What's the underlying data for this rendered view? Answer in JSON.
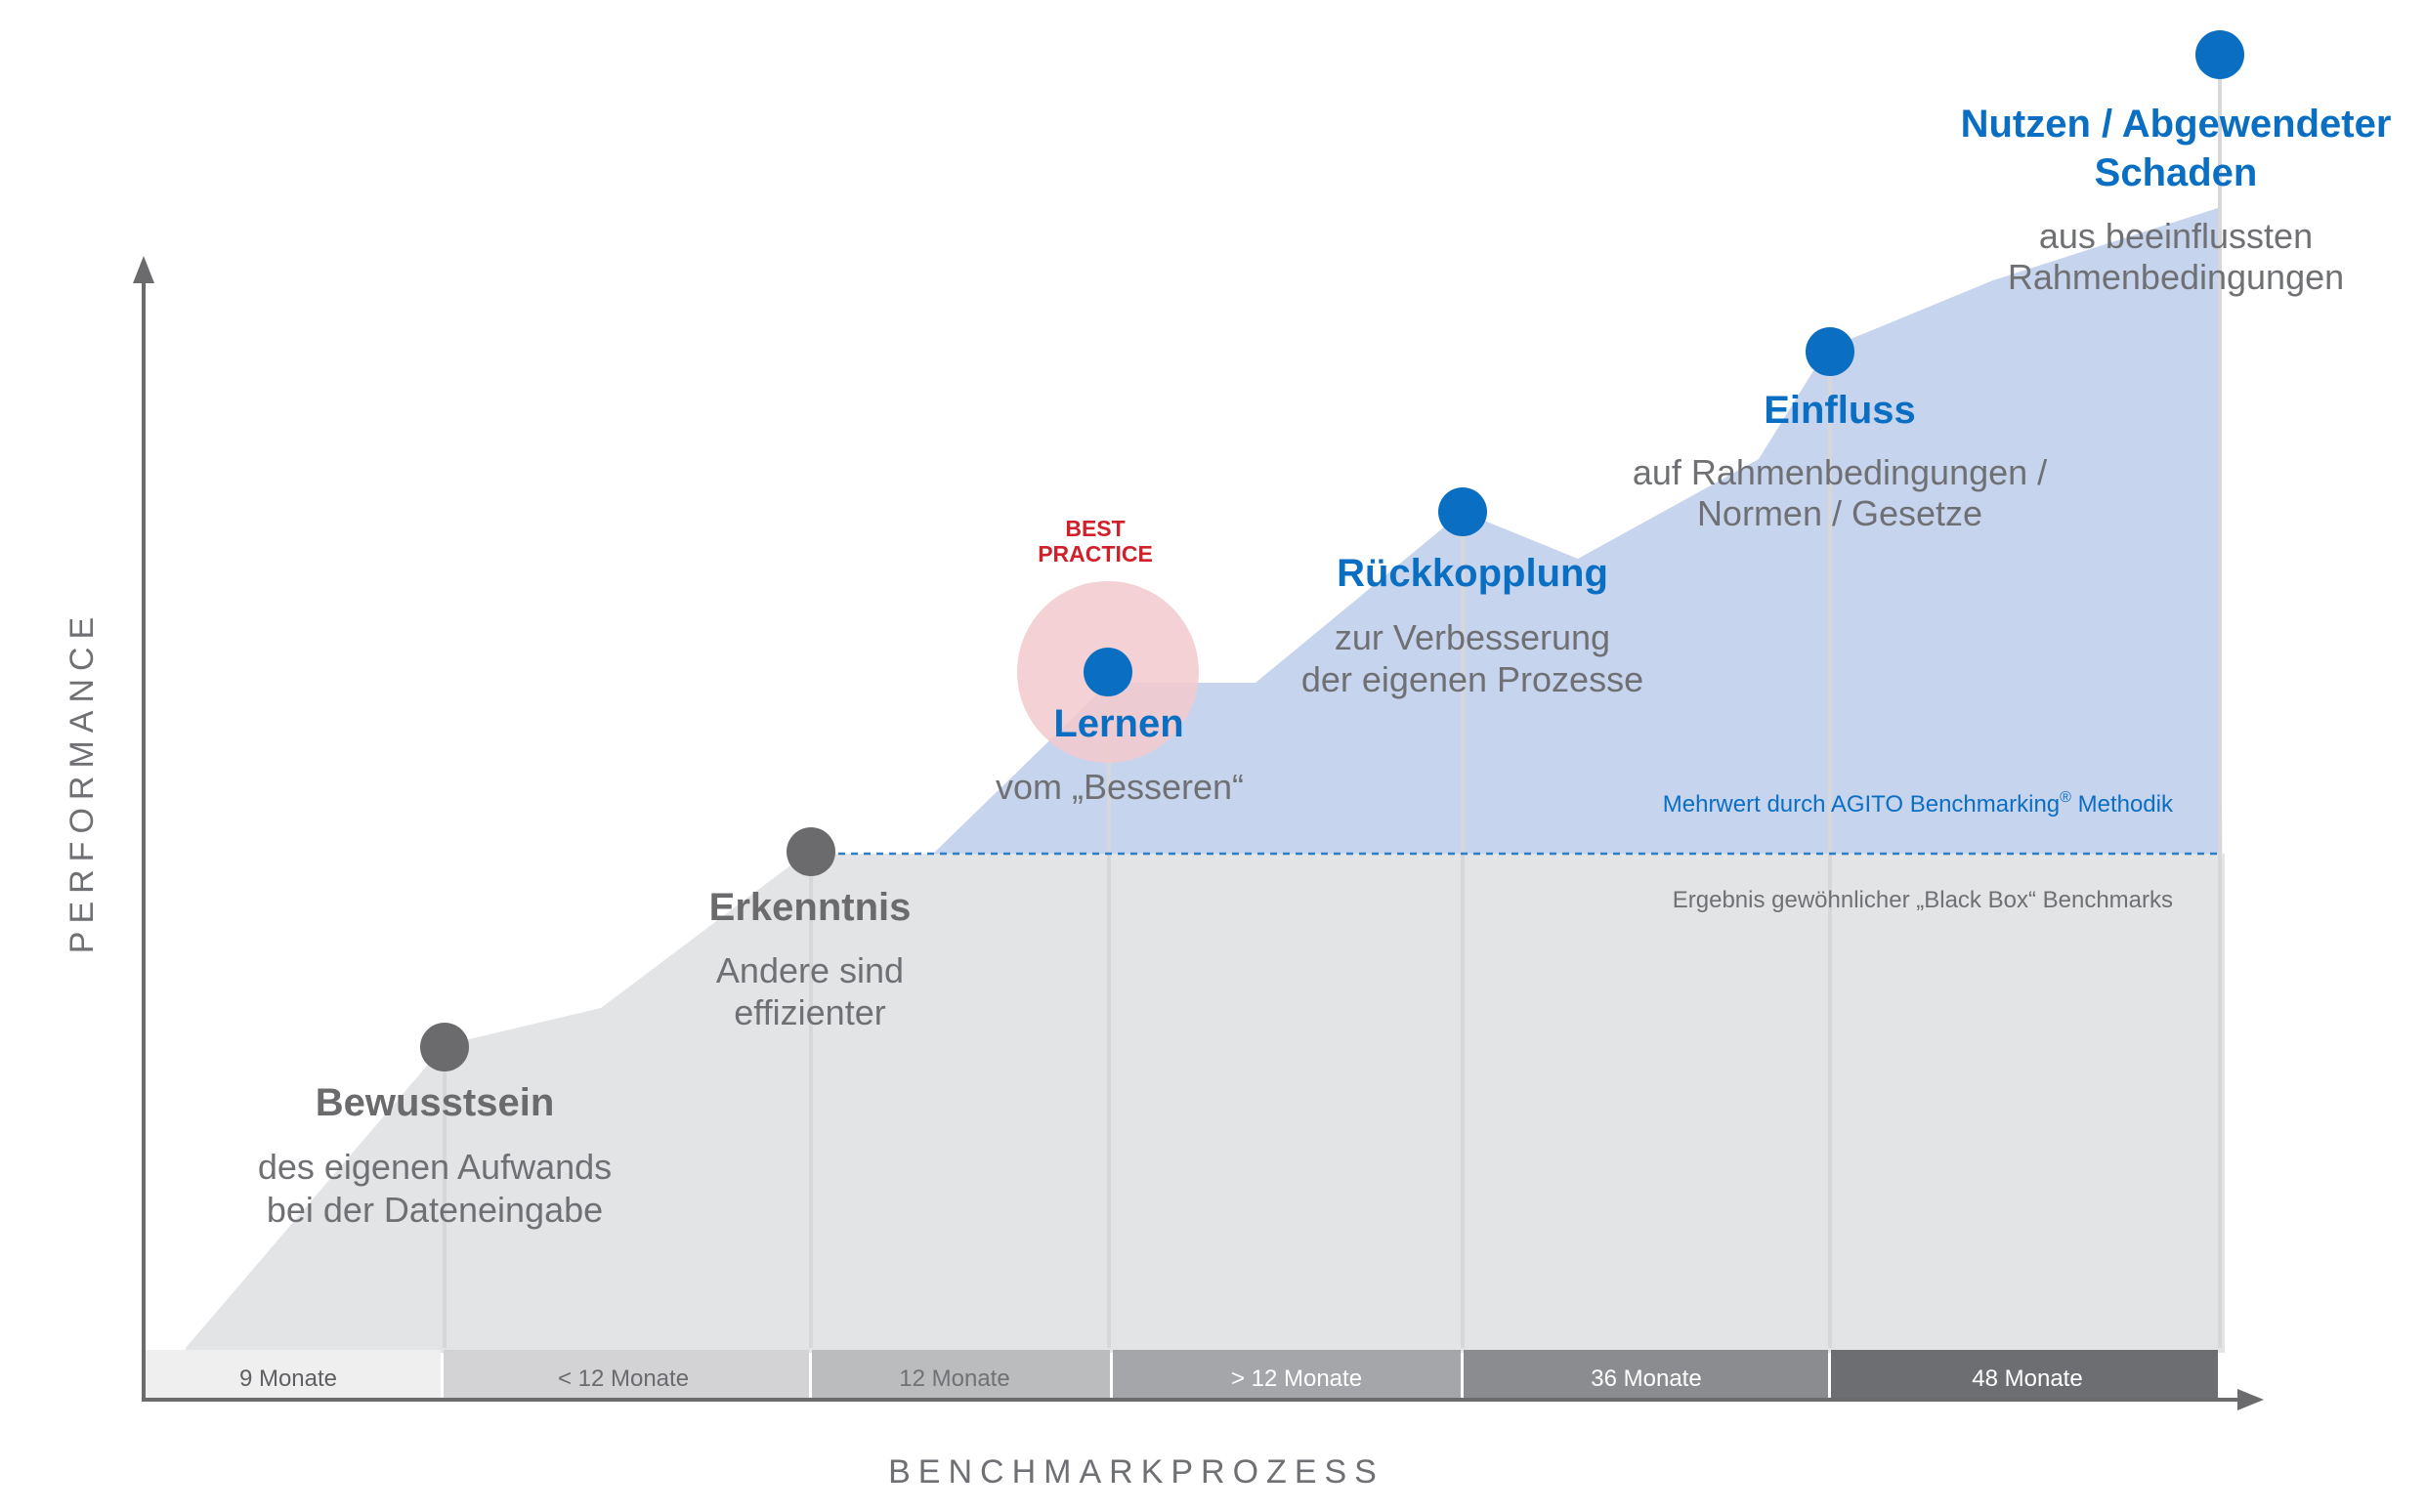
{
  "axes": {
    "y_label": "PERFORMANCE",
    "x_label": "BENCHMARKPROZESS"
  },
  "timeline": [
    {
      "label": "9 Monate"
    },
    {
      "label": "< 12 Monate"
    },
    {
      "label": "12 Monate"
    },
    {
      "label": "> 12 Monate"
    },
    {
      "label": "36 Monate"
    },
    {
      "label": "48 Monate"
    }
  ],
  "stages": [
    {
      "title": "Bewusstsein",
      "lines": [
        "des eigenen Aufwands",
        "bei der Dateneingabe"
      ],
      "style": "gray"
    },
    {
      "title": "Erkenntnis",
      "lines": [
        "Andere sind",
        "effizienter"
      ],
      "style": "gray"
    },
    {
      "title": "Lernen",
      "lines": [
        "vom „Besseren“"
      ],
      "style": "blue"
    },
    {
      "title": "Rückkopplung",
      "lines": [
        "zur Verbesserung",
        "der eigenen Prozesse"
      ],
      "style": "blue"
    },
    {
      "title": "Einfluss",
      "lines": [
        "auf Rahmenbedingungen /",
        "Normen / Gesetze"
      ],
      "style": "blue"
    },
    {
      "title_lines": [
        "Nutzen / Abgewendeter",
        "Schaden"
      ],
      "lines": [
        "aus beeinflussten",
        "Rahmenbedingungen"
      ],
      "style": "blue"
    }
  ],
  "best_practice": {
    "lines": [
      "BEST",
      "PRACTICE"
    ]
  },
  "annotations": {
    "added_value_text": "Mehrwert durch AGITO Benchmarking",
    "added_value_mark": "®",
    "added_value_suffix": " Methodik",
    "black_box_text": "Ergebnis gewöhnlicher „Black Box“ Benchmarks"
  },
  "colors": {
    "blue": "#0a6fc2",
    "blue_area": "#c7d4ee",
    "gray_area": "#e3e4e6",
    "gray_dot": "#6b6b6e",
    "gray_title": "#6b6b6e",
    "gray_text": "#6f7073",
    "best_practice": "#d0202a",
    "highlight": "#f2c9cc"
  }
}
